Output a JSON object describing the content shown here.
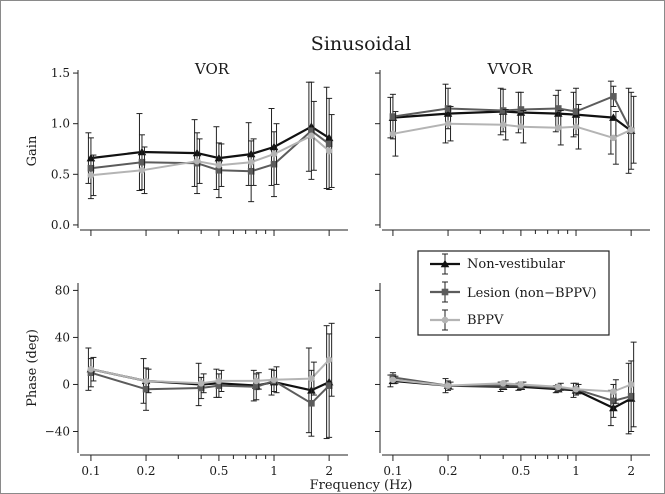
{
  "chart_data": {
    "type": "line",
    "title": "Sinusoidal",
    "xlabel": "Frequency (Hz)",
    "x_scale": "log",
    "xlim": [
      0.085,
      2.6
    ],
    "x_ticks": [
      0.1,
      0.2,
      0.5,
      1,
      2
    ],
    "x_tick_labels": [
      "0.1",
      "0.2",
      "0.5",
      "1",
      "2"
    ],
    "x_minor_ticks": [
      0.3,
      0.4,
      0.6,
      0.7,
      0.8,
      0.9
    ],
    "legend": {
      "placement": "in lower-right panel, upper area",
      "entries": [
        "Non-vestibular",
        "Lesion (non−BPPV)",
        "BPPV"
      ]
    },
    "series_styles": [
      {
        "name": "Non-vestibular",
        "color": "#111111",
        "marker": "triangle"
      },
      {
        "name": "Lesion (non−BPPV)",
        "color": "#5c5c5c",
        "marker": "square"
      },
      {
        "name": "BPPV",
        "color": "#b4b4b4",
        "marker": "circle"
      }
    ],
    "panels": [
      {
        "id": "vor-gain",
        "subtitle": "VOR",
        "ylabel": "Gain",
        "ylim": [
          -0.05,
          1.55
        ],
        "y_ticks": [
          0.0,
          0.5,
          1.0,
          1.5
        ],
        "y_tick_labels": [
          "0.0",
          "0.5",
          "1.0",
          "1.5"
        ],
        "series": [
          {
            "name": "Non-vestibular",
            "x": [
              0.1,
              0.19,
              0.38,
              0.5,
              0.75,
              1.0,
              1.6,
              2.0
            ],
            "y": [
              0.66,
              0.72,
              0.71,
              0.66,
              0.7,
              0.77,
              0.97,
              0.86
            ],
            "err": [
              0.25,
              0.38,
              0.33,
              0.31,
              0.31,
              0.38,
              0.44,
              0.5
            ]
          },
          {
            "name": "Lesion (non−BPPV)",
            "x": [
              0.1,
              0.19,
              0.38,
              0.5,
              0.75,
              1.0,
              1.6,
              2.0
            ],
            "y": [
              0.56,
              0.62,
              0.61,
              0.54,
              0.53,
              0.6,
              0.93,
              0.8
            ],
            "err": [
              0.3,
              0.27,
              0.3,
              0.27,
              0.3,
              0.32,
              0.48,
              0.45
            ]
          },
          {
            "name": "BPPV",
            "x": [
              0.1,
              0.19,
              0.38,
              0.5,
              0.75,
              1.0,
              1.6,
              2.0
            ],
            "y": [
              0.49,
              0.54,
              0.63,
              0.59,
              0.62,
              0.7,
              0.88,
              0.73
            ],
            "err": [
              0.2,
              0.23,
              0.22,
              0.21,
              0.23,
              0.3,
              0.34,
              0.36
            ]
          }
        ]
      },
      {
        "id": "vvor-gain",
        "subtitle": "VVOR",
        "ylabel": "",
        "ylim": [
          -0.05,
          1.55
        ],
        "y_ticks": [
          0.0,
          0.5,
          1.0,
          1.5
        ],
        "y_tick_labels": [
          "",
          "",
          "",
          ""
        ],
        "series": [
          {
            "name": "Non-vestibular",
            "x": [
              0.1,
              0.2,
              0.4,
              0.5,
              0.8,
              1.0,
              1.6,
              2.0
            ],
            "y": [
              1.06,
              1.1,
              1.12,
              1.11,
              1.1,
              1.09,
              1.06,
              0.93
            ],
            "err": [
              0.2,
              0.29,
              0.23,
              0.2,
              0.18,
              0.22,
              0.36,
              0.42
            ]
          },
          {
            "name": "Lesion (non−BPPV)",
            "x": [
              0.1,
              0.2,
              0.4,
              0.5,
              0.8,
              1.0,
              1.6,
              2.0
            ],
            "y": [
              1.07,
              1.15,
              1.13,
              1.14,
              1.15,
              1.12,
              1.27,
              0.93
            ],
            "err": [
              0.22,
              0.2,
              0.21,
              0.17,
              0.18,
              0.23,
              0.1,
              0.38
            ]
          },
          {
            "name": "BPPV",
            "x": [
              0.1,
              0.2,
              0.4,
              0.5,
              0.8,
              1.0,
              1.6,
              2.0
            ],
            "y": [
              0.9,
              1.0,
              0.99,
              0.97,
              0.96,
              0.97,
              0.86,
              0.94
            ],
            "err": [
              0.22,
              0.17,
              0.15,
              0.16,
              0.17,
              0.22,
              0.26,
              0.33
            ]
          }
        ]
      },
      {
        "id": "vor-phase",
        "subtitle": "",
        "ylabel": "Phase (deg)",
        "ylim": [
          -60,
          88
        ],
        "y_ticks": [
          -40,
          0,
          40,
          80
        ],
        "y_tick_labels": [
          "−40",
          "0",
          "40",
          "80"
        ],
        "series": [
          {
            "name": "Non-vestibular",
            "x": [
              0.1,
              0.2,
              0.4,
              0.5,
              0.8,
              1.0,
              1.6,
              2.0
            ],
            "y": [
              13,
              3,
              0,
              1,
              -1,
              2,
              -5,
              2
            ],
            "err": [
              18,
              19,
              18,
              12,
              13,
              11,
              36,
              48
            ]
          },
          {
            "name": "Lesion (non−BPPV)",
            "x": [
              0.1,
              0.2,
              0.4,
              0.5,
              0.8,
              1.0,
              1.6,
              2.0
            ],
            "y": [
              10,
              -4,
              -3,
              -1,
              -2,
              3,
              -16,
              -1
            ],
            "err": [
              12,
              18,
              9,
              10,
              11,
              9,
              28,
              44
            ]
          },
          {
            "name": "BPPV",
            "x": [
              0.1,
              0.2,
              0.4,
              0.5,
              0.8,
              1.0,
              1.6,
              2.0
            ],
            "y": [
              13,
              3,
              1,
              3,
              3,
              4,
              5,
              21
            ],
            "err": [
              10,
              10,
              8,
              9,
              7,
              11,
              14,
              31
            ]
          }
        ]
      },
      {
        "id": "vvor-phase",
        "subtitle": "",
        "ylabel": "",
        "ylim": [
          -60,
          88
        ],
        "y_ticks": [
          -40,
          0,
          40,
          80
        ],
        "y_tick_labels": [
          "",
          "",
          "",
          ""
        ],
        "series": [
          {
            "name": "Non-vestibular",
            "x": [
              0.1,
              0.2,
              0.4,
              0.5,
              0.8,
              1.0,
              1.6,
              2.0
            ],
            "y": [
              3,
              -1,
              -2,
              -2,
              -4,
              -5,
              -20,
              -12
            ],
            "err": [
              5,
              6,
              4,
              3,
              3,
              6,
              15,
              30
            ]
          },
          {
            "name": "Lesion (non−BPPV)",
            "x": [
              0.1,
              0.2,
              0.4,
              0.5,
              0.8,
              1.0,
              1.6,
              2.0
            ],
            "y": [
              6,
              -1,
              -1,
              -1,
              -3,
              -4,
              -14,
              -10
            ],
            "err": [
              4,
              4,
              3,
              3,
              3,
              5,
              14,
              30
            ]
          },
          {
            "name": "BPPV",
            "x": [
              0.1,
              0.2,
              0.4,
              0.5,
              0.8,
              1.0,
              1.6,
              2.0
            ],
            "y": [
              4,
              -1,
              1,
              0,
              -2,
              -4,
              -6,
              0
            ],
            "err": [
              3,
              3,
              2,
              2,
              3,
              4,
              10,
              36
            ]
          }
        ]
      }
    ]
  }
}
